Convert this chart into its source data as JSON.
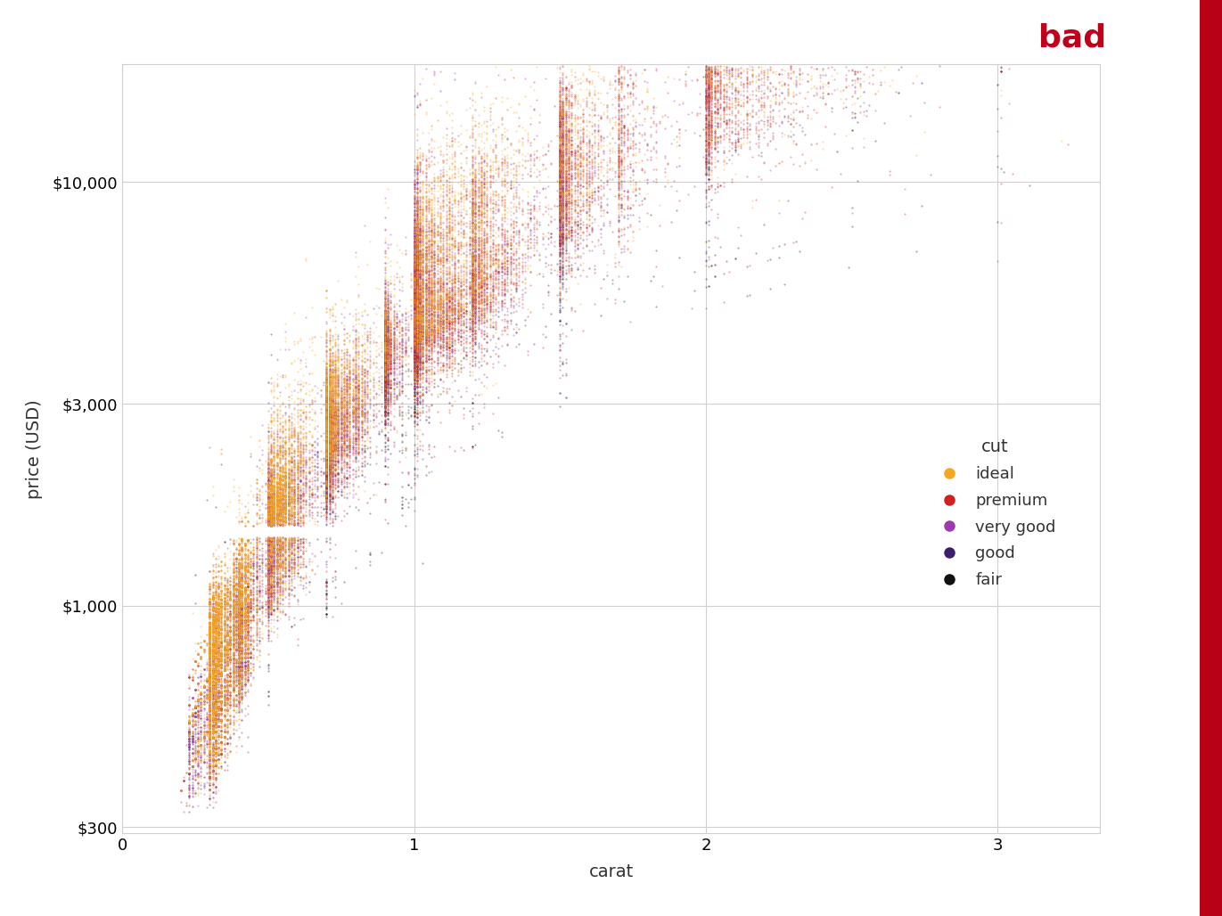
{
  "title": "bad",
  "title_color": "#C0001A",
  "xlabel": "carat",
  "ylabel": "price (USD)",
  "xlim": [
    0.0,
    3.35
  ],
  "ylim_log": [
    290,
    19000
  ],
  "yticks": [
    300,
    1000,
    3000,
    10000
  ],
  "ytick_labels": [
    "$300",
    "$1,000",
    "$3,000",
    "$10,000"
  ],
  "xticks": [
    0,
    1,
    2,
    3
  ],
  "background_color": "#ffffff",
  "panel_background": "#ffffff",
  "grid_color": "#d0d0d0",
  "cut_colors": {
    "Fair": "#111111",
    "Good": "#3B1F6E",
    "Very Good": "#9B3BAF",
    "Premium": "#CC2222",
    "Ideal": "#F5A623"
  },
  "cut_order_bottom_to_top": [
    "Fair",
    "Good",
    "Very Good",
    "Premium",
    "Ideal"
  ],
  "legend_title": "cut",
  "legend_labels": [
    "ideal",
    "premium",
    "very good",
    "good",
    "fair"
  ],
  "legend_colors": [
    "#F5A623",
    "#CC2222",
    "#9B3BAF",
    "#3B1F6E",
    "#111111"
  ],
  "point_size": 2.5,
  "point_alpha": 0.35,
  "red_border_color": "#B80016",
  "fig_width": 13.71,
  "fig_height": 10.28,
  "dpi": 100
}
